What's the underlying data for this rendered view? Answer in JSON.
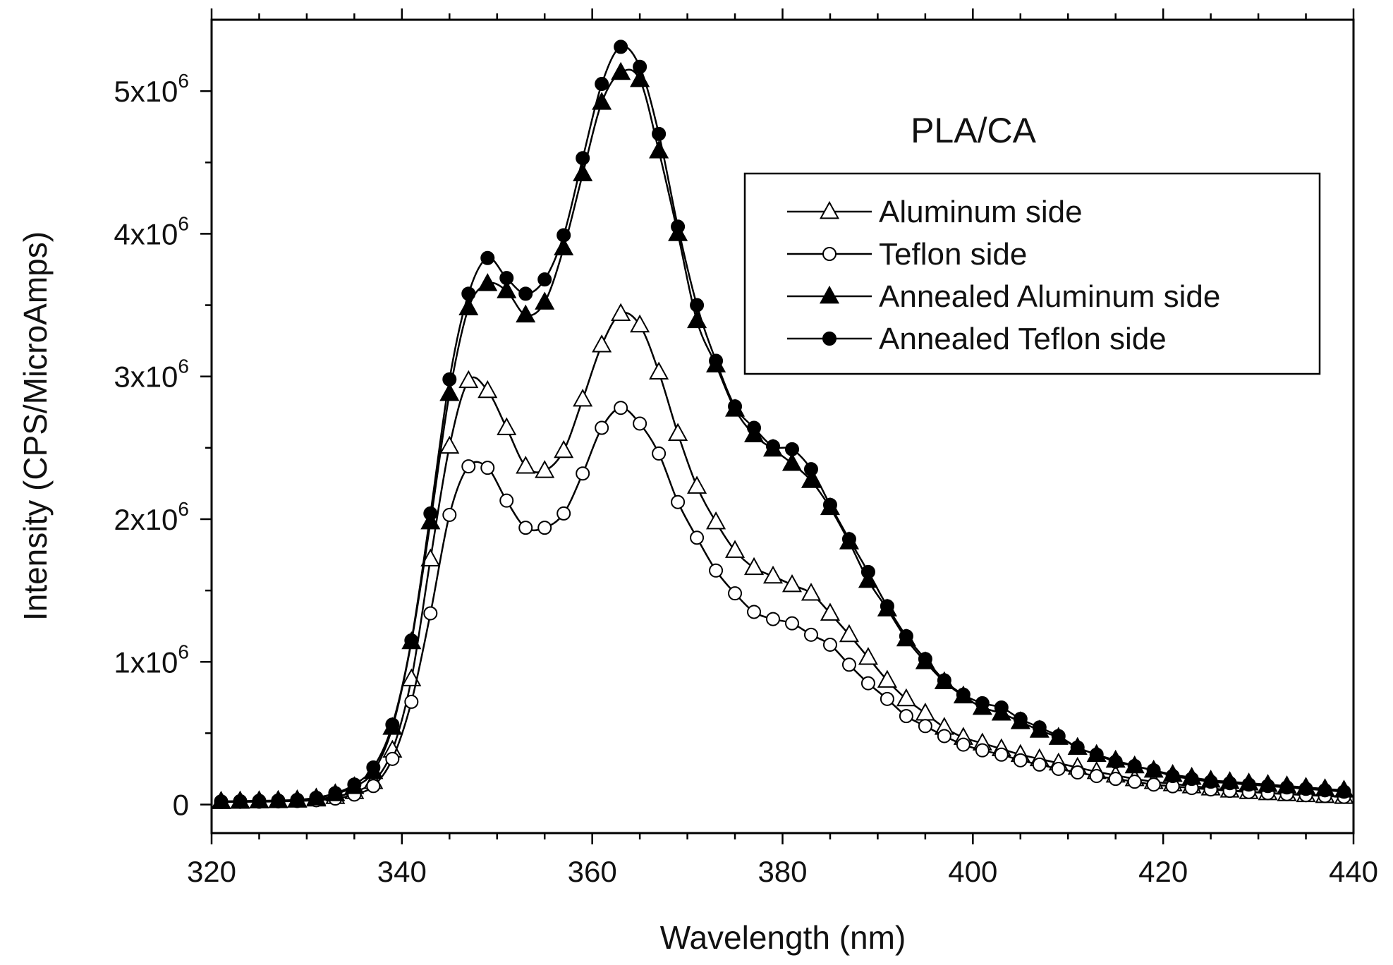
{
  "chart_data": {
    "type": "line",
    "title": "",
    "annotation": "PLA/CA",
    "xlabel": "Wavelength (nm)",
    "ylabel": "Intensity (CPS/MicroAmps)",
    "xlim": [
      320,
      440
    ],
    "ylim": [
      -200000,
      5500000
    ],
    "x_ticks": [
      {
        "value": 320,
        "label": "320"
      },
      {
        "value": 340,
        "label": "340"
      },
      {
        "value": 360,
        "label": "360"
      },
      {
        "value": 380,
        "label": "380"
      },
      {
        "value": 400,
        "label": "400"
      },
      {
        "value": 420,
        "label": "420"
      },
      {
        "value": 440,
        "label": "440"
      }
    ],
    "y_ticks": [
      {
        "value": 0,
        "base": "0",
        "exp": ""
      },
      {
        "value": 1000000,
        "base": "1x10",
        "exp": "6"
      },
      {
        "value": 2000000,
        "base": "2x10",
        "exp": "6"
      },
      {
        "value": 3000000,
        "base": "3x10",
        "exp": "6"
      },
      {
        "value": 4000000,
        "base": "4x10",
        "exp": "6"
      },
      {
        "value": 5000000,
        "base": "5x10",
        "exp": "6"
      }
    ],
    "legend_position": "top-right",
    "x": [
      321,
      323,
      325,
      327,
      329,
      331,
      333,
      335,
      337,
      339,
      341,
      343,
      345,
      347,
      349,
      351,
      353,
      355,
      357,
      359,
      361,
      363,
      365,
      367,
      369,
      371,
      373,
      375,
      377,
      379,
      381,
      383,
      385,
      387,
      389,
      391,
      393,
      395,
      397,
      399,
      401,
      403,
      405,
      407,
      409,
      411,
      413,
      415,
      417,
      419,
      421,
      423,
      425,
      427,
      429,
      431,
      433,
      435,
      437,
      439
    ],
    "series": [
      {
        "name": "Aluminum side",
        "marker": "triangle-open",
        "values": [
          20000,
          22000,
          24000,
          26000,
          30000,
          38000,
          55000,
          90000,
          160000,
          380000,
          880000,
          1720000,
          2510000,
          2970000,
          2900000,
          2640000,
          2370000,
          2340000,
          2480000,
          2840000,
          3220000,
          3440000,
          3360000,
          3030000,
          2600000,
          2230000,
          1980000,
          1780000,
          1660000,
          1600000,
          1540000,
          1480000,
          1340000,
          1190000,
          1030000,
          870000,
          740000,
          640000,
          540000,
          470000,
          430000,
          390000,
          350000,
          320000,
          290000,
          260000,
          230000,
          205000,
          180000,
          160000,
          145000,
          130000,
          115000,
          100000,
          90000,
          82000,
          75000,
          68000,
          62000,
          56000
        ]
      },
      {
        "name": "Teflon side",
        "marker": "circle-open",
        "values": [
          18000,
          19000,
          20000,
          22000,
          25000,
          30000,
          42000,
          70000,
          130000,
          320000,
          720000,
          1340000,
          2030000,
          2370000,
          2360000,
          2130000,
          1940000,
          1940000,
          2040000,
          2320000,
          2640000,
          2780000,
          2670000,
          2460000,
          2120000,
          1870000,
          1640000,
          1480000,
          1350000,
          1300000,
          1270000,
          1190000,
          1120000,
          980000,
          850000,
          740000,
          620000,
          550000,
          480000,
          420000,
          380000,
          350000,
          310000,
          280000,
          250000,
          225000,
          200000,
          180000,
          160000,
          140000,
          128000,
          116000,
          106000,
          96000,
          88000,
          80000,
          73000,
          66000,
          60000,
          54000
        ]
      },
      {
        "name": "Annealed Aluminum side",
        "marker": "triangle-filled",
        "values": [
          22000,
          24000,
          26000,
          28000,
          32000,
          45000,
          75000,
          125000,
          230000,
          540000,
          1140000,
          1980000,
          2880000,
          3480000,
          3650000,
          3600000,
          3430000,
          3520000,
          3900000,
          4420000,
          4920000,
          5130000,
          5080000,
          4580000,
          4000000,
          3390000,
          3080000,
          2770000,
          2590000,
          2490000,
          2390000,
          2270000,
          2080000,
          1840000,
          1570000,
          1370000,
          1160000,
          1000000,
          860000,
          760000,
          680000,
          640000,
          580000,
          520000,
          470000,
          400000,
          350000,
          310000,
          270000,
          240000,
          210000,
          190000,
          170000,
          160000,
          150000,
          140000,
          130000,
          120000,
          110000,
          100000
        ]
      },
      {
        "name": "Annealed Teflon side",
        "marker": "circle-filled",
        "values": [
          22000,
          24000,
          26000,
          28000,
          33000,
          48000,
          80000,
          140000,
          260000,
          560000,
          1150000,
          2040000,
          2980000,
          3580000,
          3830000,
          3690000,
          3580000,
          3680000,
          3990000,
          4530000,
          5050000,
          5310000,
          5170000,
          4700000,
          4050000,
          3500000,
          3110000,
          2790000,
          2640000,
          2510000,
          2490000,
          2350000,
          2100000,
          1860000,
          1630000,
          1390000,
          1180000,
          1020000,
          870000,
          770000,
          710000,
          680000,
          600000,
          540000,
          480000,
          400000,
          350000,
          300000,
          270000,
          240000,
          200000,
          180000,
          160000,
          150000,
          140000,
          130000,
          120000,
          110000,
          100000,
          90000
        ]
      }
    ]
  }
}
